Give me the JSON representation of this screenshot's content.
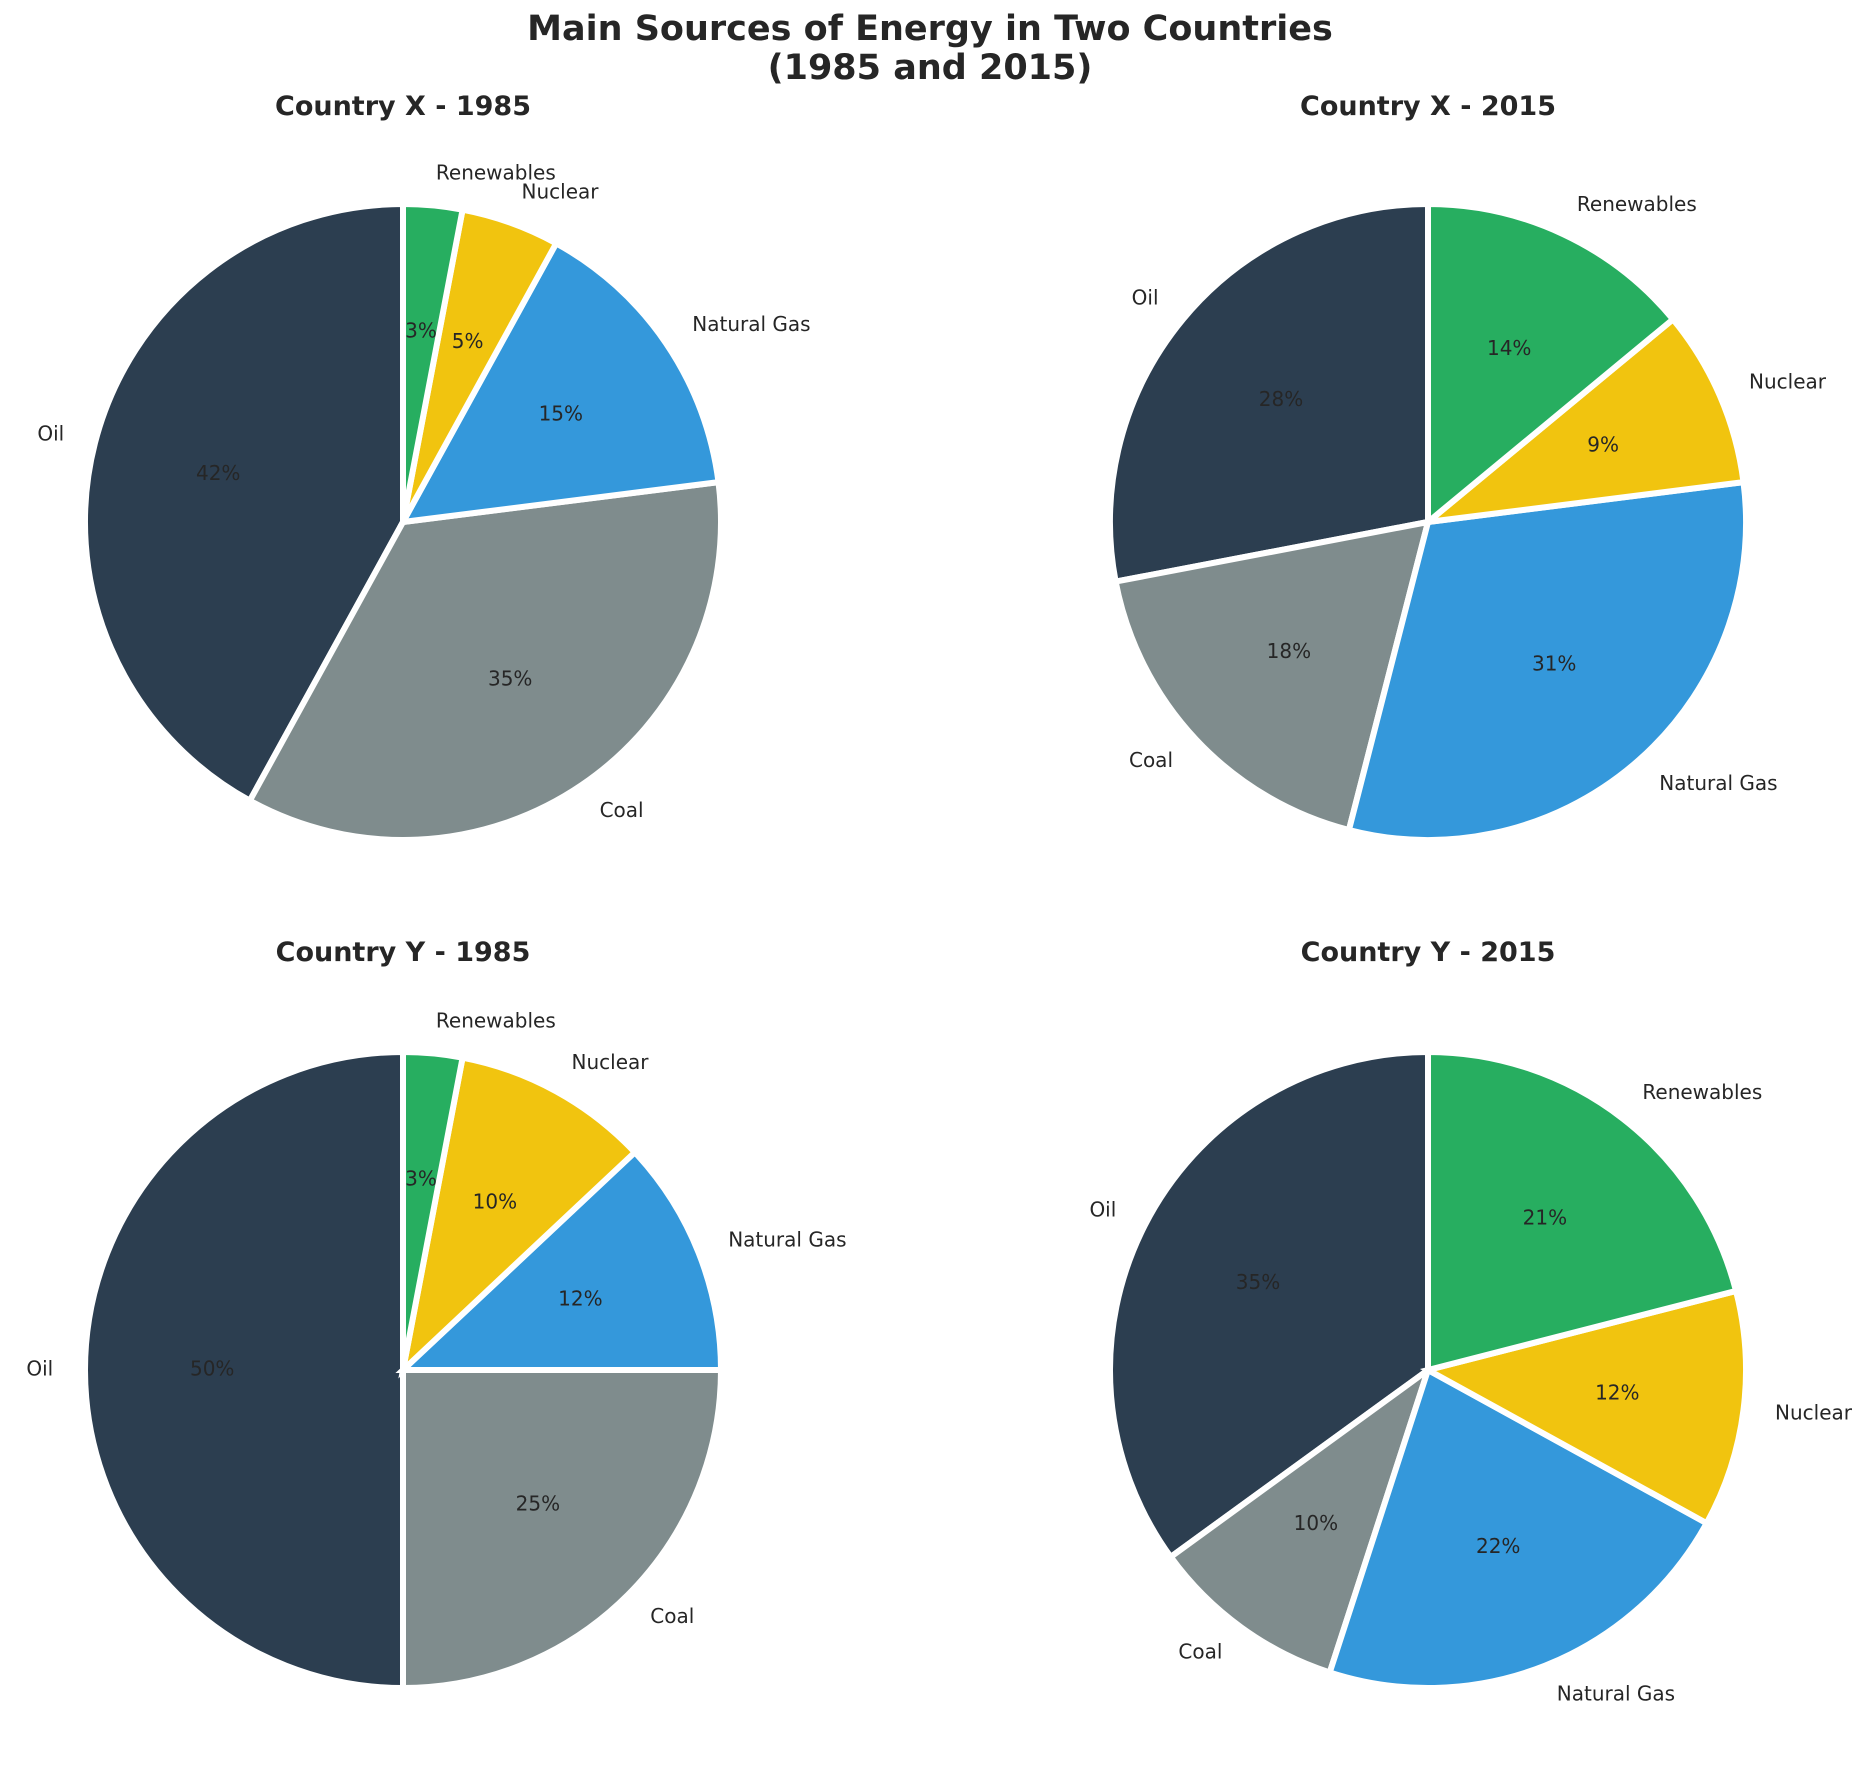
{
  "title_line1": "Main Sources of Energy in Two Countries",
  "title_line2": "(1985 and 2015)",
  "colors": {
    "Oil": "#2c3e50",
    "Coal": "#7f8c8d",
    "Natural Gas": "#3498db",
    "Nuclear": "#f1c40f",
    "Renewables": "#27ae60"
  },
  "chart_data": [
    {
      "type": "pie",
      "title": "Country X - 1985",
      "categories": [
        "Oil",
        "Coal",
        "Natural Gas",
        "Nuclear",
        "Renewables"
      ],
      "values": [
        42,
        35,
        15,
        5,
        3
      ],
      "pct_labels": [
        "42%",
        "35%",
        "15%",
        "5%",
        "3%"
      ],
      "start_angle_deg": 90,
      "direction": "counterclockwise"
    },
    {
      "type": "pie",
      "title": "Country X - 2015",
      "categories": [
        "Oil",
        "Coal",
        "Natural Gas",
        "Nuclear",
        "Renewables"
      ],
      "values": [
        28,
        18,
        31,
        9,
        14
      ],
      "pct_labels": [
        "28%",
        "18%",
        "31%",
        "9%",
        "14%"
      ],
      "start_angle_deg": 90,
      "direction": "counterclockwise"
    },
    {
      "type": "pie",
      "title": "Country Y - 1985",
      "categories": [
        "Oil",
        "Coal",
        "Natural Gas",
        "Nuclear",
        "Renewables"
      ],
      "values": [
        50,
        25,
        12,
        10,
        3
      ],
      "pct_labels": [
        "50%",
        "25%",
        "12%",
        "10%",
        "3%"
      ],
      "start_angle_deg": 90,
      "direction": "counterclockwise"
    },
    {
      "type": "pie",
      "title": "Country Y - 2015",
      "categories": [
        "Oil",
        "Coal",
        "Natural Gas",
        "Nuclear",
        "Renewables"
      ],
      "values": [
        35,
        10,
        22,
        12,
        21
      ],
      "pct_labels": [
        "35%",
        "10%",
        "22%",
        "12%",
        "21%"
      ],
      "start_angle_deg": 90,
      "direction": "counterclockwise"
    }
  ]
}
